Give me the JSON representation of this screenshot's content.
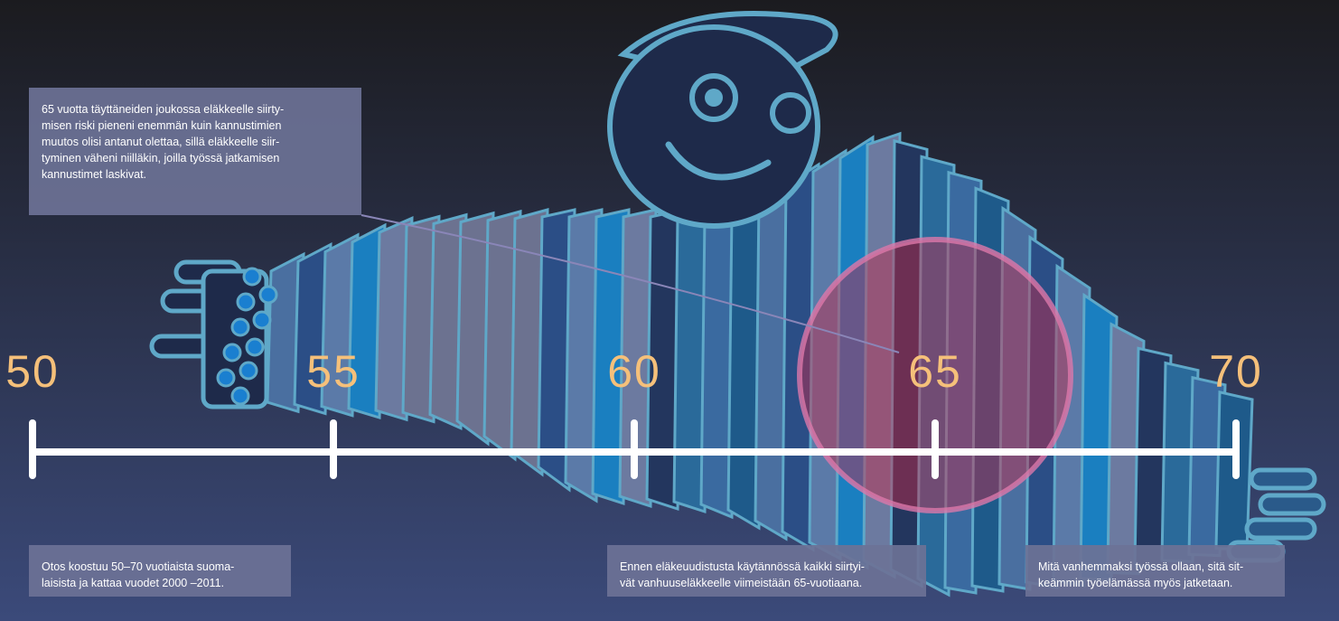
{
  "timeline": {
    "ticks": [
      50,
      55,
      60,
      65,
      70
    ]
  },
  "notes": [
    {
      "lines": [
        "65 vuotta täyttäneiden joukossa eläkkeelle siirty-",
        "misen riski pieneni enemmän kuin kannustimien",
        "muutos olisi antanut olettaa, sillä eläkkeelle siir-",
        "tyminen väheni niilläkin, joilla työssä jatkamisen",
        "kannustimet laskivat."
      ]
    },
    {
      "lines": [
        "Otos koostuu 50–70 vuotiaista suoma-",
        "laisista ja kattaa vuodet 2000 –2011."
      ]
    },
    {
      "lines": [
        "Ennen eläkeuudistusta käytännössä kaikki siirtyi-",
        "vät vanhuuseläkkeelle viimeistään 65-vuotiaana."
      ]
    },
    {
      "lines": [
        "Mitä vanhemmaksi työssä ollaan, sitä sit-",
        "keämmin työelämässä myös jatketaan."
      ]
    }
  ]
}
